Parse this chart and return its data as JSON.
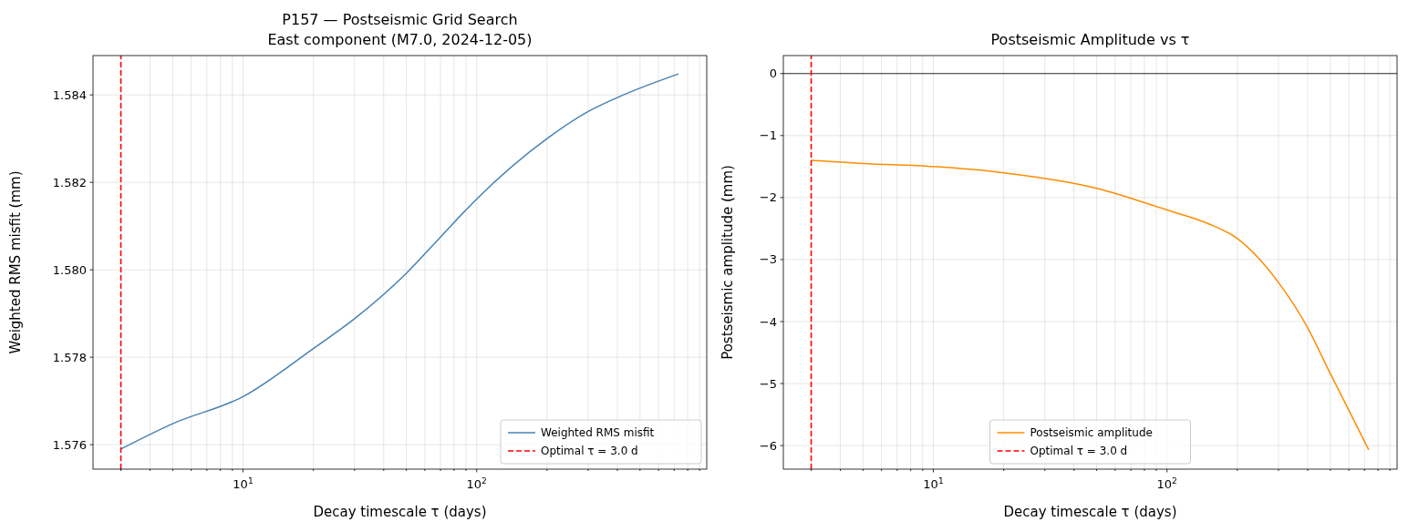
{
  "chart_data": [
    {
      "type": "line",
      "title": "P157 — Postseismic Grid Search",
      "subtitle": "East component (M7.0, 2024-12-05)",
      "xlabel": "Decay timescale τ (days)",
      "ylabel": "Weighted RMS misfit (mm)",
      "log": "x",
      "grid": true,
      "legend": "bottom right",
      "xlim": [
        2.28,
        965
      ],
      "ylim": [
        1.57544,
        1.5849
      ],
      "xticks": [
        {
          "value": 3,
          "label": null
        },
        {
          "value": 4,
          "label": null
        },
        {
          "value": 5,
          "label": null
        },
        {
          "value": 6,
          "label": null
        },
        {
          "value": 7,
          "label": null
        },
        {
          "value": 8,
          "label": null
        },
        {
          "value": 9,
          "label": null
        },
        {
          "value": 10,
          "label": "10$^{1}$"
        },
        {
          "value": 20,
          "label": null
        },
        {
          "value": 30,
          "label": null
        },
        {
          "value": 40,
          "label": null
        },
        {
          "value": 50,
          "label": null
        },
        {
          "value": 60,
          "label": null
        },
        {
          "value": 70,
          "label": null
        },
        {
          "value": 80,
          "label": null
        },
        {
          "value": 90,
          "label": null
        },
        {
          "value": 100,
          "label": "10$^{2}$"
        },
        {
          "value": 200,
          "label": null
        },
        {
          "value": 300,
          "label": null
        },
        {
          "value": 400,
          "label": null
        },
        {
          "value": 500,
          "label": null
        },
        {
          "value": 600,
          "label": null
        },
        {
          "value": 700,
          "label": null
        },
        {
          "value": 800,
          "label": null
        },
        {
          "value": 900,
          "label": null
        }
      ],
      "yticks": [
        {
          "value": 1.576,
          "label": "1.576"
        },
        {
          "value": 1.578,
          "label": "1.578"
        },
        {
          "value": 1.58,
          "label": "1.580"
        },
        {
          "value": 1.582,
          "label": "1.582"
        },
        {
          "value": 1.584,
          "label": "1.584"
        }
      ],
      "series": [
        {
          "name": "Weighted RMS misfit",
          "color": "#4682b4",
          "x": [
            3,
            5,
            10,
            20,
            30,
            50,
            70,
            100,
            200,
            300,
            400,
            730
          ],
          "values": [
            1.5759,
            1.57648,
            1.5771,
            1.5782,
            1.57888,
            1.57992,
            1.58075,
            1.58162,
            1.583,
            1.58362,
            1.58394,
            1.58448
          ]
        },
        {
          "name": "Optimal τ = 3.0 d",
          "color": "#ff0000",
          "line_style": "dashed",
          "x": [
            3,
            3
          ],
          "values": [
            1.57544,
            1.5849
          ]
        }
      ]
    },
    {
      "type": "line",
      "title": "Postseismic Amplitude vs τ",
      "xlabel": "Decay timescale τ (days)",
      "ylabel": "Postseismic amplitude (mm)",
      "log": "x",
      "grid": true,
      "legend": "bottom",
      "xlim": [
        2.28,
        965
      ],
      "ylim": [
        -6.38,
        0.29
      ],
      "xticks": [
        {
          "value": 3,
          "label": null
        },
        {
          "value": 4,
          "label": null
        },
        {
          "value": 5,
          "label": null
        },
        {
          "value": 6,
          "label": null
        },
        {
          "value": 7,
          "label": null
        },
        {
          "value": 8,
          "label": null
        },
        {
          "value": 9,
          "label": null
        },
        {
          "value": 10,
          "label": "10$^{1}$"
        },
        {
          "value": 20,
          "label": null
        },
        {
          "value": 30,
          "label": null
        },
        {
          "value": 40,
          "label": null
        },
        {
          "value": 50,
          "label": null
        },
        {
          "value": 60,
          "label": null
        },
        {
          "value": 70,
          "label": null
        },
        {
          "value": 80,
          "label": null
        },
        {
          "value": 90,
          "label": null
        },
        {
          "value": 100,
          "label": "10$^{2}$"
        },
        {
          "value": 200,
          "label": null
        },
        {
          "value": 300,
          "label": null
        },
        {
          "value": 400,
          "label": null
        },
        {
          "value": 500,
          "label": null
        },
        {
          "value": 600,
          "label": null
        },
        {
          "value": 700,
          "label": null
        },
        {
          "value": 800,
          "label": null
        },
        {
          "value": 900,
          "label": null
        }
      ],
      "yticks": [
        -6,
        -5,
        -4,
        -3,
        -2,
        -1,
        0
      ],
      "ref_lines": [
        {
          "axis": "y",
          "value": 0,
          "color": "#000000",
          "line_style": "solid"
        }
      ],
      "series": [
        {
          "name": "Postseismic amplitude",
          "color": "#ff8c00",
          "x": [
            3,
            5,
            10,
            20,
            50,
            100,
            150,
            200,
            300,
            400,
            500,
            600,
            730
          ],
          "values": [
            -1.4,
            -1.45,
            -1.5,
            -1.6,
            -1.85,
            -2.2,
            -2.42,
            -2.66,
            -3.37,
            -4.1,
            -4.84,
            -5.43,
            -6.07
          ]
        },
        {
          "name": "Optimal τ = 3.0 d",
          "color": "#ff0000",
          "line_style": "dashed",
          "x": [
            3,
            3
          ],
          "values": [
            -6.38,
            0.29
          ]
        }
      ]
    }
  ]
}
